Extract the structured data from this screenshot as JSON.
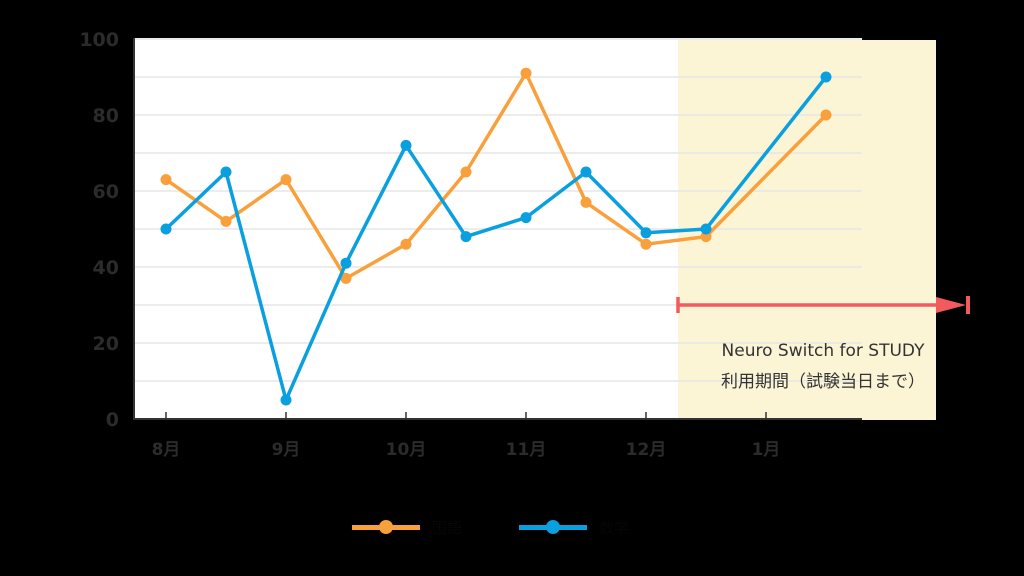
{
  "chart_data": {
    "type": "line",
    "title": "",
    "xlabel": "",
    "ylabel": "",
    "ylim": [
      0,
      100
    ],
    "yticks": [
      0,
      20,
      40,
      60,
      80,
      100
    ],
    "grid": true,
    "x_tick_labels": [
      "8月",
      "9月",
      "10月",
      "11月",
      "12月",
      "1月"
    ],
    "points_x_index": [
      0,
      0.5,
      1,
      1.5,
      2,
      2.5,
      3,
      3.5,
      4,
      4.5,
      5.5
    ],
    "series": [
      {
        "name": "国語",
        "color": "#f9a03c",
        "values": [
          63,
          52,
          63,
          37,
          46,
          65,
          91,
          57,
          46,
          48,
          80
        ]
      },
      {
        "name": "数学",
        "color": "#0aa0e0",
        "values": [
          50,
          65,
          5,
          41,
          72,
          48,
          53,
          65,
          49,
          50,
          90
        ]
      }
    ],
    "highlight": {
      "from_index": 4.27,
      "color": "#fbf5d6",
      "label_line1": "Neuro Switch for STUDY",
      "label_line2": "利用期間（試験当日まで）",
      "arrow_color": "#f25a5f"
    },
    "legend_position": "bottom"
  }
}
